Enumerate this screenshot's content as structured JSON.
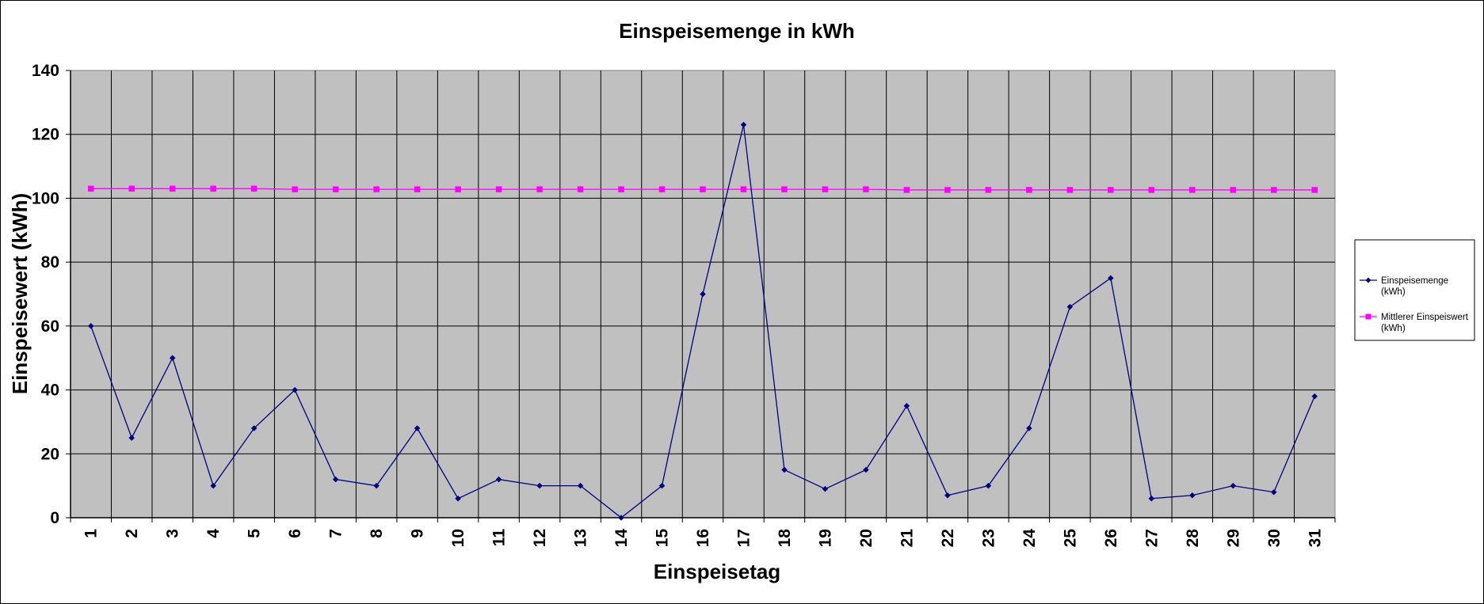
{
  "chart_data": {
    "type": "line",
    "title": "Einspeisemenge in kWh",
    "xlabel": "Einspeisetag",
    "ylabel": "Einspeisewert  (kWh)",
    "categories": [
      "1",
      "2",
      "3",
      "4",
      "5",
      "6",
      "7",
      "8",
      "9",
      "10",
      "11",
      "12",
      "13",
      "14",
      "15",
      "16",
      "17",
      "18",
      "19",
      "20",
      "21",
      "22",
      "23",
      "24",
      "25",
      "26",
      "27",
      "28",
      "29",
      "30",
      "31"
    ],
    "ylim": [
      0,
      140
    ],
    "yticks": [
      "0",
      "20",
      "40",
      "60",
      "80",
      "100",
      "120",
      "140"
    ],
    "grid": true,
    "plot_background": "#c0c0c0",
    "legend_position": "right",
    "series": [
      {
        "name": "Einspeisemenge",
        "name_line2": "(kWh)",
        "color": "#000080",
        "marker": "diamond",
        "values": [
          60,
          25,
          50,
          10,
          28,
          40,
          12,
          10,
          28,
          6,
          12,
          10,
          10,
          0,
          10,
          70,
          123,
          15,
          9,
          15,
          35,
          7,
          10,
          28,
          66,
          75,
          6,
          7,
          10,
          8,
          38
        ]
      },
      {
        "name": "Mittlerer Einspeiswert",
        "name_line2": "(kWh)",
        "color": "#ff00ff",
        "marker": "square",
        "values": [
          103,
          103,
          103,
          103,
          103,
          102.8,
          102.8,
          102.8,
          102.8,
          102.8,
          102.8,
          102.8,
          102.8,
          102.8,
          102.8,
          102.8,
          102.8,
          102.8,
          102.8,
          102.8,
          102.6,
          102.6,
          102.6,
          102.6,
          102.6,
          102.6,
          102.6,
          102.6,
          102.6,
          102.6,
          102.6
        ]
      }
    ]
  }
}
